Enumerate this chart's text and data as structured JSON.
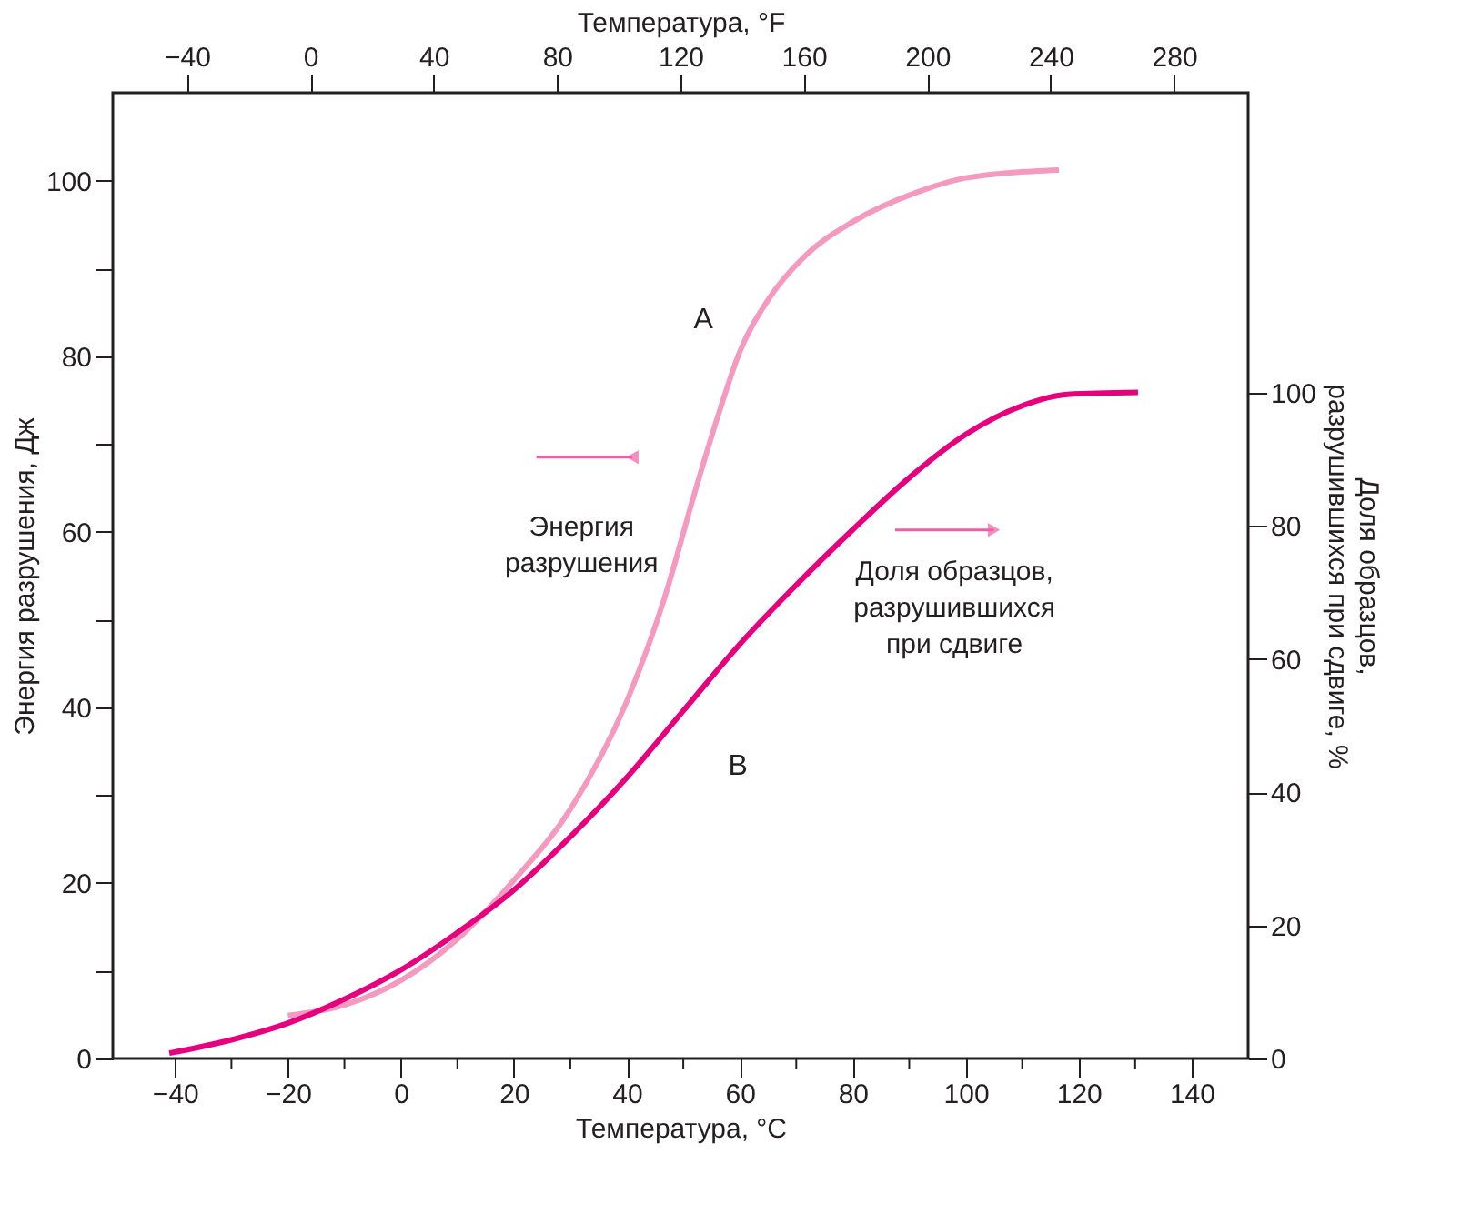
{
  "chart_data": {
    "type": "line",
    "xlabel": "Температура, °C",
    "x2label": "Температура, °F",
    "ylabel": "Энергия разрушения, Дж",
    "y2label": "Доля образцов, разрушившихся при сдвиге, %",
    "xlim": [
      -51,
      150
    ],
    "xticks": [
      -40,
      {
        "value": -30,
        "label": null
      },
      -20,
      {
        "value": -10,
        "label": null
      },
      0,
      {
        "value": 10,
        "label": null
      },
      20,
      {
        "value": 30,
        "label": null
      },
      40,
      {
        "value": 50,
        "label": null
      },
      60,
      {
        "value": 70,
        "label": null
      },
      80,
      {
        "value": 90,
        "label": null
      },
      100,
      {
        "value": 110,
        "label": null
      },
      120,
      {
        "value": 130,
        "label": null
      },
      140
    ],
    "x2lim": [
      -64,
      304
    ],
    "x2ticks": [
      -40,
      0,
      40,
      80,
      120,
      160,
      200,
      240,
      280
    ],
    "ylim": [
      0,
      110
    ],
    "yticks": [
      0,
      {
        "value": 10,
        "label": null
      },
      20,
      {
        "value": 30,
        "label": null
      },
      40,
      {
        "value": 50,
        "label": null
      },
      60,
      {
        "value": 70,
        "label": null
      },
      80,
      {
        "value": 90,
        "label": null
      },
      100
    ],
    "y2lim": [
      0,
      145
    ],
    "y2ticks": [
      0,
      20,
      40,
      60,
      80,
      100
    ],
    "grid": false,
    "legend": false,
    "line_style": "solid",
    "marker": "none",
    "series": [
      {
        "name": "A",
        "color": "#f49ac1",
        "x": [
          -20,
          -10,
          0,
          10,
          20,
          30,
          40,
          46.7,
          52,
          56,
          60,
          65,
          71.7,
          80,
          91.5,
          100,
          116.5
        ],
        "values": [
          4.9,
          6.1,
          8.9,
          13.6,
          20.3,
          28.4,
          40.7,
          52.5,
          64.4,
          72.9,
          80.5,
          86.4,
          91.5,
          95.3,
          98.7,
          100.3,
          101.2
        ]
      },
      {
        "name": "B",
        "color": "#e6007e",
        "axis": "y2",
        "x": [
          -41,
          -30,
          -20,
          -10,
          0,
          10,
          20,
          30,
          40,
          50,
          60,
          70,
          80,
          90,
          100,
          110,
          118,
          130.5
        ],
        "values": [
          0.8,
          2.8,
          5.3,
          8.9,
          13.3,
          18.9,
          25.3,
          33.3,
          42.2,
          52.2,
          62.2,
          71.1,
          79.4,
          87.2,
          93.7,
          98,
          99.7,
          100
        ]
      }
    ],
    "annotations": [
      "Энергия разрушения",
      "Доля образцов, разрушившихся при сдвиге"
    ]
  }
}
